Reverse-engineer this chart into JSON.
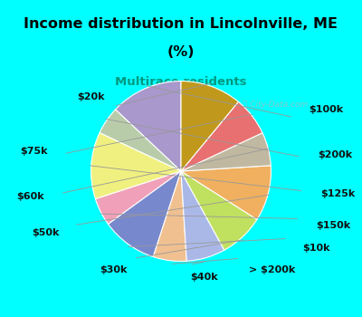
{
  "title_line1": "Income distribution in Lincolnville, ME",
  "title_line2": "(%)",
  "subtitle": "Multirace residents",
  "title_color": "#000000",
  "subtitle_color": "#009980",
  "bg_cyan": "#00ffff",
  "bg_chart": "#dff0e8",
  "watermark": "ⓘ City-Data.com",
  "labels": [
    "$100k",
    "$200k",
    "$125k",
    "$150k",
    "$10k",
    "> $200k",
    "$40k",
    "$30k",
    "$50k",
    "$60k",
    "$75k",
    "$20k"
  ],
  "values": [
    13,
    5,
    12,
    5,
    10,
    6,
    7,
    8,
    10,
    6,
    7,
    11
  ],
  "colors": [
    "#a898cc",
    "#b8ccaa",
    "#f0f080",
    "#f0a0b8",
    "#7888cc",
    "#f0c090",
    "#aab8e8",
    "#c0e060",
    "#f0b060",
    "#c0b8a0",
    "#e87070",
    "#c0981c"
  ],
  "startangle": 90,
  "label_fontsize": 8,
  "label_fontweight": "bold"
}
